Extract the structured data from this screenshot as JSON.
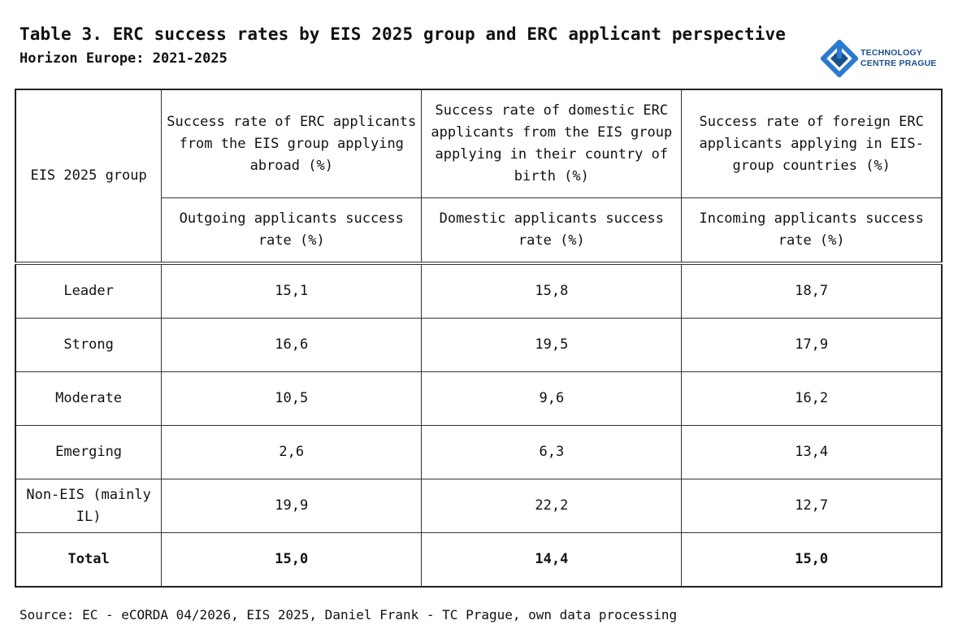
{
  "title": "Table 3. ERC success rates by EIS 2025 group and ERC applicant perspective",
  "subtitle": "Horizon Europe: 2021-2025",
  "logo": {
    "line1": "TECHNOLOGY",
    "line2": "CENTRE PRAGUE",
    "icon": "tc-prague-logo",
    "color": "#1b5fa8"
  },
  "table": {
    "group_header": "EIS 2025 group",
    "headers": [
      "Success rate of ERC applicants from the EIS group applying abroad (%)",
      "Success rate of domestic ERC applicants from the EIS group applying in their country of birth (%)",
      "Success rate of foreign ERC applicants applying in EIS-group countries (%)"
    ],
    "subheaders": [
      "Outgoing applicants success rate (%)",
      "Domestic applicants success rate (%)",
      "Incoming applicants success rate (%)"
    ],
    "rows": [
      {
        "group": "Leader",
        "values": [
          "15,1",
          "15,8",
          "18,7"
        ]
      },
      {
        "group": "Strong",
        "values": [
          "16,6",
          "19,5",
          "17,9"
        ]
      },
      {
        "group": "Moderate",
        "values": [
          "10,5",
          "9,6",
          "16,2"
        ]
      },
      {
        "group": "Emerging",
        "values": [
          "2,6",
          "6,3",
          "13,4"
        ]
      },
      {
        "group": "Non-EIS (mainly IL)",
        "values": [
          "19,9",
          "22,2",
          "12,7"
        ]
      },
      {
        "group": "Total",
        "values": [
          "15,0",
          "14,4",
          "15,0"
        ]
      }
    ]
  },
  "footer": "Source: EC - eCORDA 04/2026, EIS 2025, Daniel Frank - TC Prague, own data processing"
}
